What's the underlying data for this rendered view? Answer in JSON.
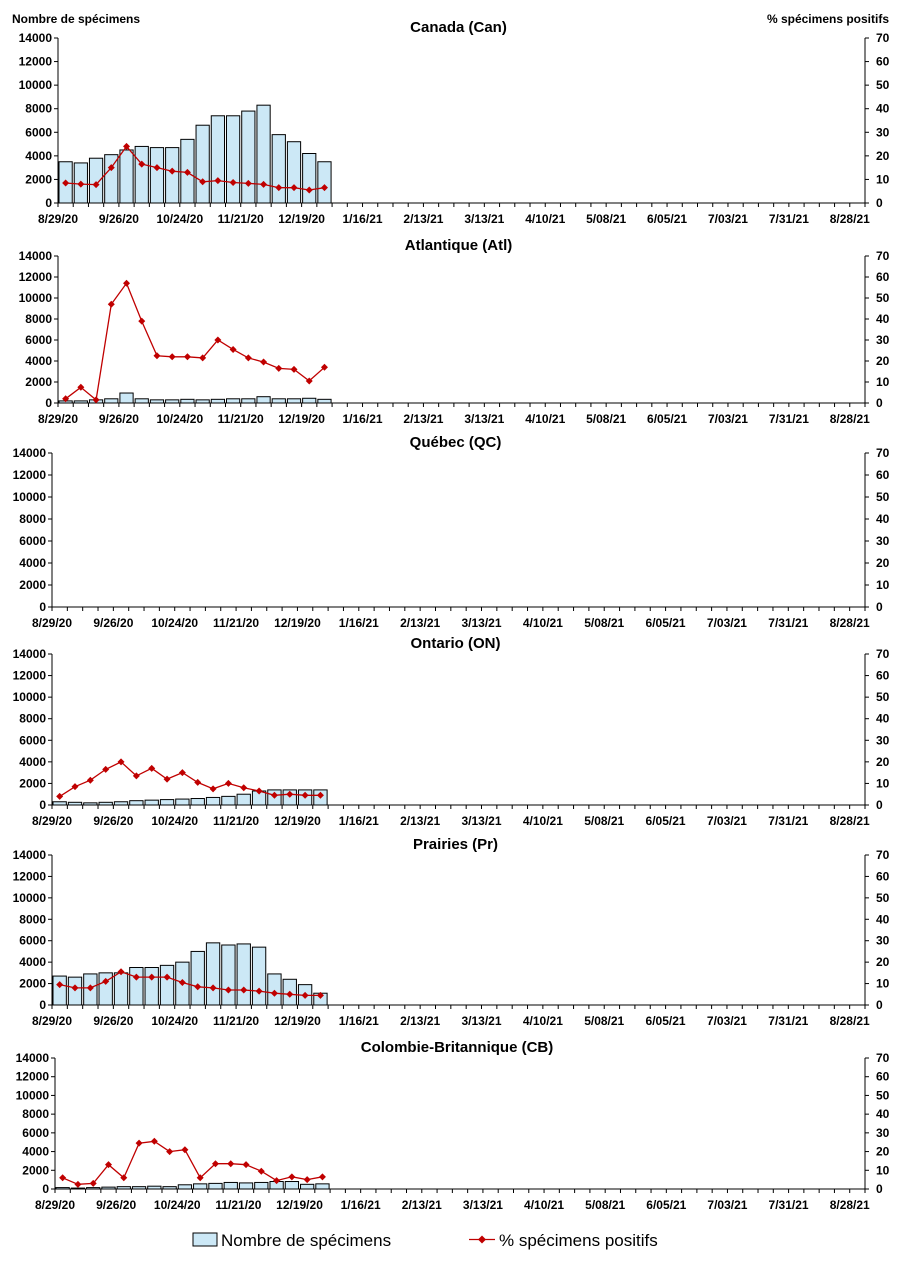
{
  "header": {
    "left_axis_title": "Nombre de spécimens",
    "right_axis_title": "% spécimens positifs"
  },
  "legend": {
    "bars_label": "Nombre de spécimens",
    "line_label": "% spécimens positifs"
  },
  "colors": {
    "bar_fill": "#cce8f6",
    "bar_stroke": "#000000",
    "line": "#c00000"
  },
  "chart_data": [
    {
      "type": "bar",
      "title": "Canada (Can)",
      "x_tick_labels": [
        "8/29/20",
        "9/26/20",
        "10/24/20",
        "11/21/20",
        "12/19/20",
        "1/16/21",
        "2/13/21",
        "3/13/21",
        "4/10/21",
        "5/08/21",
        "6/05/21",
        "7/03/21",
        "7/31/21",
        "8/28/21"
      ],
      "weeks_total": 53,
      "ylim_left": [
        0,
        14000
      ],
      "yticks_left": [
        0,
        2000,
        4000,
        6000,
        8000,
        10000,
        12000,
        14000
      ],
      "ylim_right": [
        0,
        70
      ],
      "yticks_right": [
        0,
        10,
        20,
        30,
        40,
        50,
        60,
        70
      ],
      "series": [
        {
          "name": "Nombre de spécimens",
          "axis": "left",
          "kind": "bar",
          "values": [
            3500,
            3400,
            3800,
            4100,
            4500,
            4800,
            4700,
            4700,
            5400,
            6600,
            7400,
            7400,
            7800,
            8300,
            5800,
            5200,
            4200,
            3500
          ]
        },
        {
          "name": "% spécimens positifs",
          "axis": "right",
          "kind": "line",
          "values": [
            8.5,
            8,
            7.8,
            15,
            24,
            16.5,
            15,
            13.5,
            13,
            9,
            9.5,
            8.7,
            8.3,
            7.9,
            6.5,
            6.5,
            5.5,
            6.5
          ]
        }
      ]
    },
    {
      "type": "bar",
      "title": "Atlantique (Atl)",
      "x_tick_labels": [
        "8/29/20",
        "9/26/20",
        "10/24/20",
        "11/21/20",
        "12/19/20",
        "1/16/21",
        "2/13/21",
        "3/13/21",
        "4/10/21",
        "5/08/21",
        "6/05/21",
        "7/03/21",
        "7/31/21",
        "8/28/21"
      ],
      "weeks_total": 53,
      "ylim_left": [
        0,
        14000
      ],
      "yticks_left": [
        0,
        2000,
        4000,
        6000,
        8000,
        10000,
        12000,
        14000
      ],
      "ylim_right": [
        0,
        70
      ],
      "yticks_right": [
        0,
        10,
        20,
        30,
        40,
        50,
        60,
        70
      ],
      "series": [
        {
          "name": "Nombre de spécimens",
          "axis": "left",
          "kind": "bar",
          "values": [
            200,
            200,
            300,
            400,
            950,
            400,
            300,
            300,
            350,
            300,
            350,
            400,
            400,
            600,
            400,
            400,
            450,
            350
          ]
        },
        {
          "name": "% spécimens positifs",
          "axis": "right",
          "kind": "line",
          "values": [
            2,
            7.5,
            1.5,
            47,
            57,
            39,
            22.5,
            22,
            22,
            21.5,
            30,
            25.5,
            21.5,
            19.5,
            16.5,
            16,
            10.5,
            17
          ]
        }
      ]
    },
    {
      "type": "bar",
      "title": "Québec (QC)",
      "x_tick_labels": [
        "8/29/20",
        "9/26/20",
        "10/24/20",
        "11/21/20",
        "12/19/20",
        "1/16/21",
        "2/13/21",
        "3/13/21",
        "4/10/21",
        "5/08/21",
        "6/05/21",
        "7/03/21",
        "7/31/21",
        "8/28/21"
      ],
      "weeks_total": 53,
      "ylim_left": [
        0,
        14000
      ],
      "yticks_left": [
        0,
        2000,
        4000,
        6000,
        8000,
        10000,
        12000,
        14000
      ],
      "ylim_right": [
        0,
        70
      ],
      "yticks_right": [
        0,
        10,
        20,
        30,
        40,
        50,
        60,
        70
      ],
      "series": [
        {
          "name": "Nombre de spécimens",
          "axis": "left",
          "kind": "bar",
          "values": []
        },
        {
          "name": "% spécimens positifs",
          "axis": "right",
          "kind": "line",
          "values": []
        }
      ]
    },
    {
      "type": "bar",
      "title": "Ontario (ON)",
      "x_tick_labels": [
        "8/29/20",
        "9/26/20",
        "10/24/20",
        "11/21/20",
        "12/19/20",
        "1/16/21",
        "2/13/21",
        "3/13/21",
        "4/10/21",
        "5/08/21",
        "6/05/21",
        "7/03/21",
        "7/31/21",
        "8/28/21"
      ],
      "weeks_total": 53,
      "ylim_left": [
        0,
        14000
      ],
      "yticks_left": [
        0,
        2000,
        4000,
        6000,
        8000,
        10000,
        12000,
        14000
      ],
      "ylim_right": [
        0,
        70
      ],
      "yticks_right": [
        0,
        10,
        20,
        30,
        40,
        50,
        60,
        70
      ],
      "series": [
        {
          "name": "Nombre de spécimens",
          "axis": "left",
          "kind": "bar",
          "values": [
            300,
            250,
            200,
            250,
            300,
            400,
            450,
            500,
            550,
            600,
            700,
            800,
            1000,
            1300,
            1400,
            1400,
            1400,
            1400
          ]
        },
        {
          "name": "% spécimens positifs",
          "axis": "right",
          "kind": "line",
          "values": [
            4,
            8.5,
            11.5,
            16.5,
            20,
            13.5,
            17,
            12,
            15,
            10.5,
            7.5,
            10,
            8,
            6.5,
            4.5,
            5,
            4.5,
            4.5
          ]
        }
      ]
    },
    {
      "type": "bar",
      "title": "Prairies (Pr)",
      "x_tick_labels": [
        "8/29/20",
        "9/26/20",
        "10/24/20",
        "11/21/20",
        "12/19/20",
        "1/16/21",
        "2/13/21",
        "3/13/21",
        "4/10/21",
        "5/08/21",
        "6/05/21",
        "7/03/21",
        "7/31/21",
        "8/28/21"
      ],
      "weeks_total": 53,
      "ylim_left": [
        0,
        14000
      ],
      "yticks_left": [
        0,
        2000,
        4000,
        6000,
        8000,
        10000,
        12000,
        14000
      ],
      "ylim_right": [
        0,
        70
      ],
      "yticks_right": [
        0,
        10,
        20,
        30,
        40,
        50,
        60,
        70
      ],
      "series": [
        {
          "name": "Nombre de spécimens",
          "axis": "left",
          "kind": "bar",
          "values": [
            2700,
            2600,
            2900,
            3000,
            3000,
            3500,
            3500,
            3700,
            4000,
            5000,
            5800,
            5600,
            5700,
            5400,
            2900,
            2400,
            1900,
            1100
          ]
        },
        {
          "name": "% spécimens positifs",
          "axis": "right",
          "kind": "line",
          "values": [
            9.5,
            8,
            8,
            11,
            15.5,
            13,
            13,
            13,
            10.5,
            8.5,
            8,
            7,
            7,
            6.5,
            5.5,
            5,
            4.5,
            4.5
          ]
        }
      ]
    },
    {
      "type": "bar",
      "title": "Colombie-Britannique (CB)",
      "x_tick_labels": [
        "8/29/20",
        "9/26/20",
        "10/24/20",
        "11/21/20",
        "12/19/20",
        "1/16/21",
        "2/13/21",
        "3/13/21",
        "4/10/21",
        "5/08/21",
        "6/05/21",
        "7/03/21",
        "7/31/21",
        "8/28/21"
      ],
      "weeks_total": 53,
      "ylim_left": [
        0,
        14000
      ],
      "yticks_left": [
        0,
        2000,
        4000,
        6000,
        8000,
        10000,
        12000,
        14000
      ],
      "ylim_right": [
        0,
        70
      ],
      "yticks_right": [
        0,
        10,
        20,
        30,
        40,
        50,
        60,
        70
      ],
      "series": [
        {
          "name": "Nombre de spécimens",
          "axis": "left",
          "kind": "bar",
          "values": [
            150,
            100,
            150,
            200,
            250,
            250,
            300,
            250,
            450,
            550,
            600,
            700,
            650,
            700,
            800,
            800,
            500,
            550
          ]
        },
        {
          "name": "% spécimens positifs",
          "axis": "right",
          "kind": "line",
          "values": [
            6,
            2.5,
            3,
            13,
            6,
            24.5,
            25.5,
            20,
            21,
            6,
            13.5,
            13.5,
            13,
            9.5,
            4.5,
            6.5,
            5,
            6.5
          ]
        }
      ]
    }
  ]
}
